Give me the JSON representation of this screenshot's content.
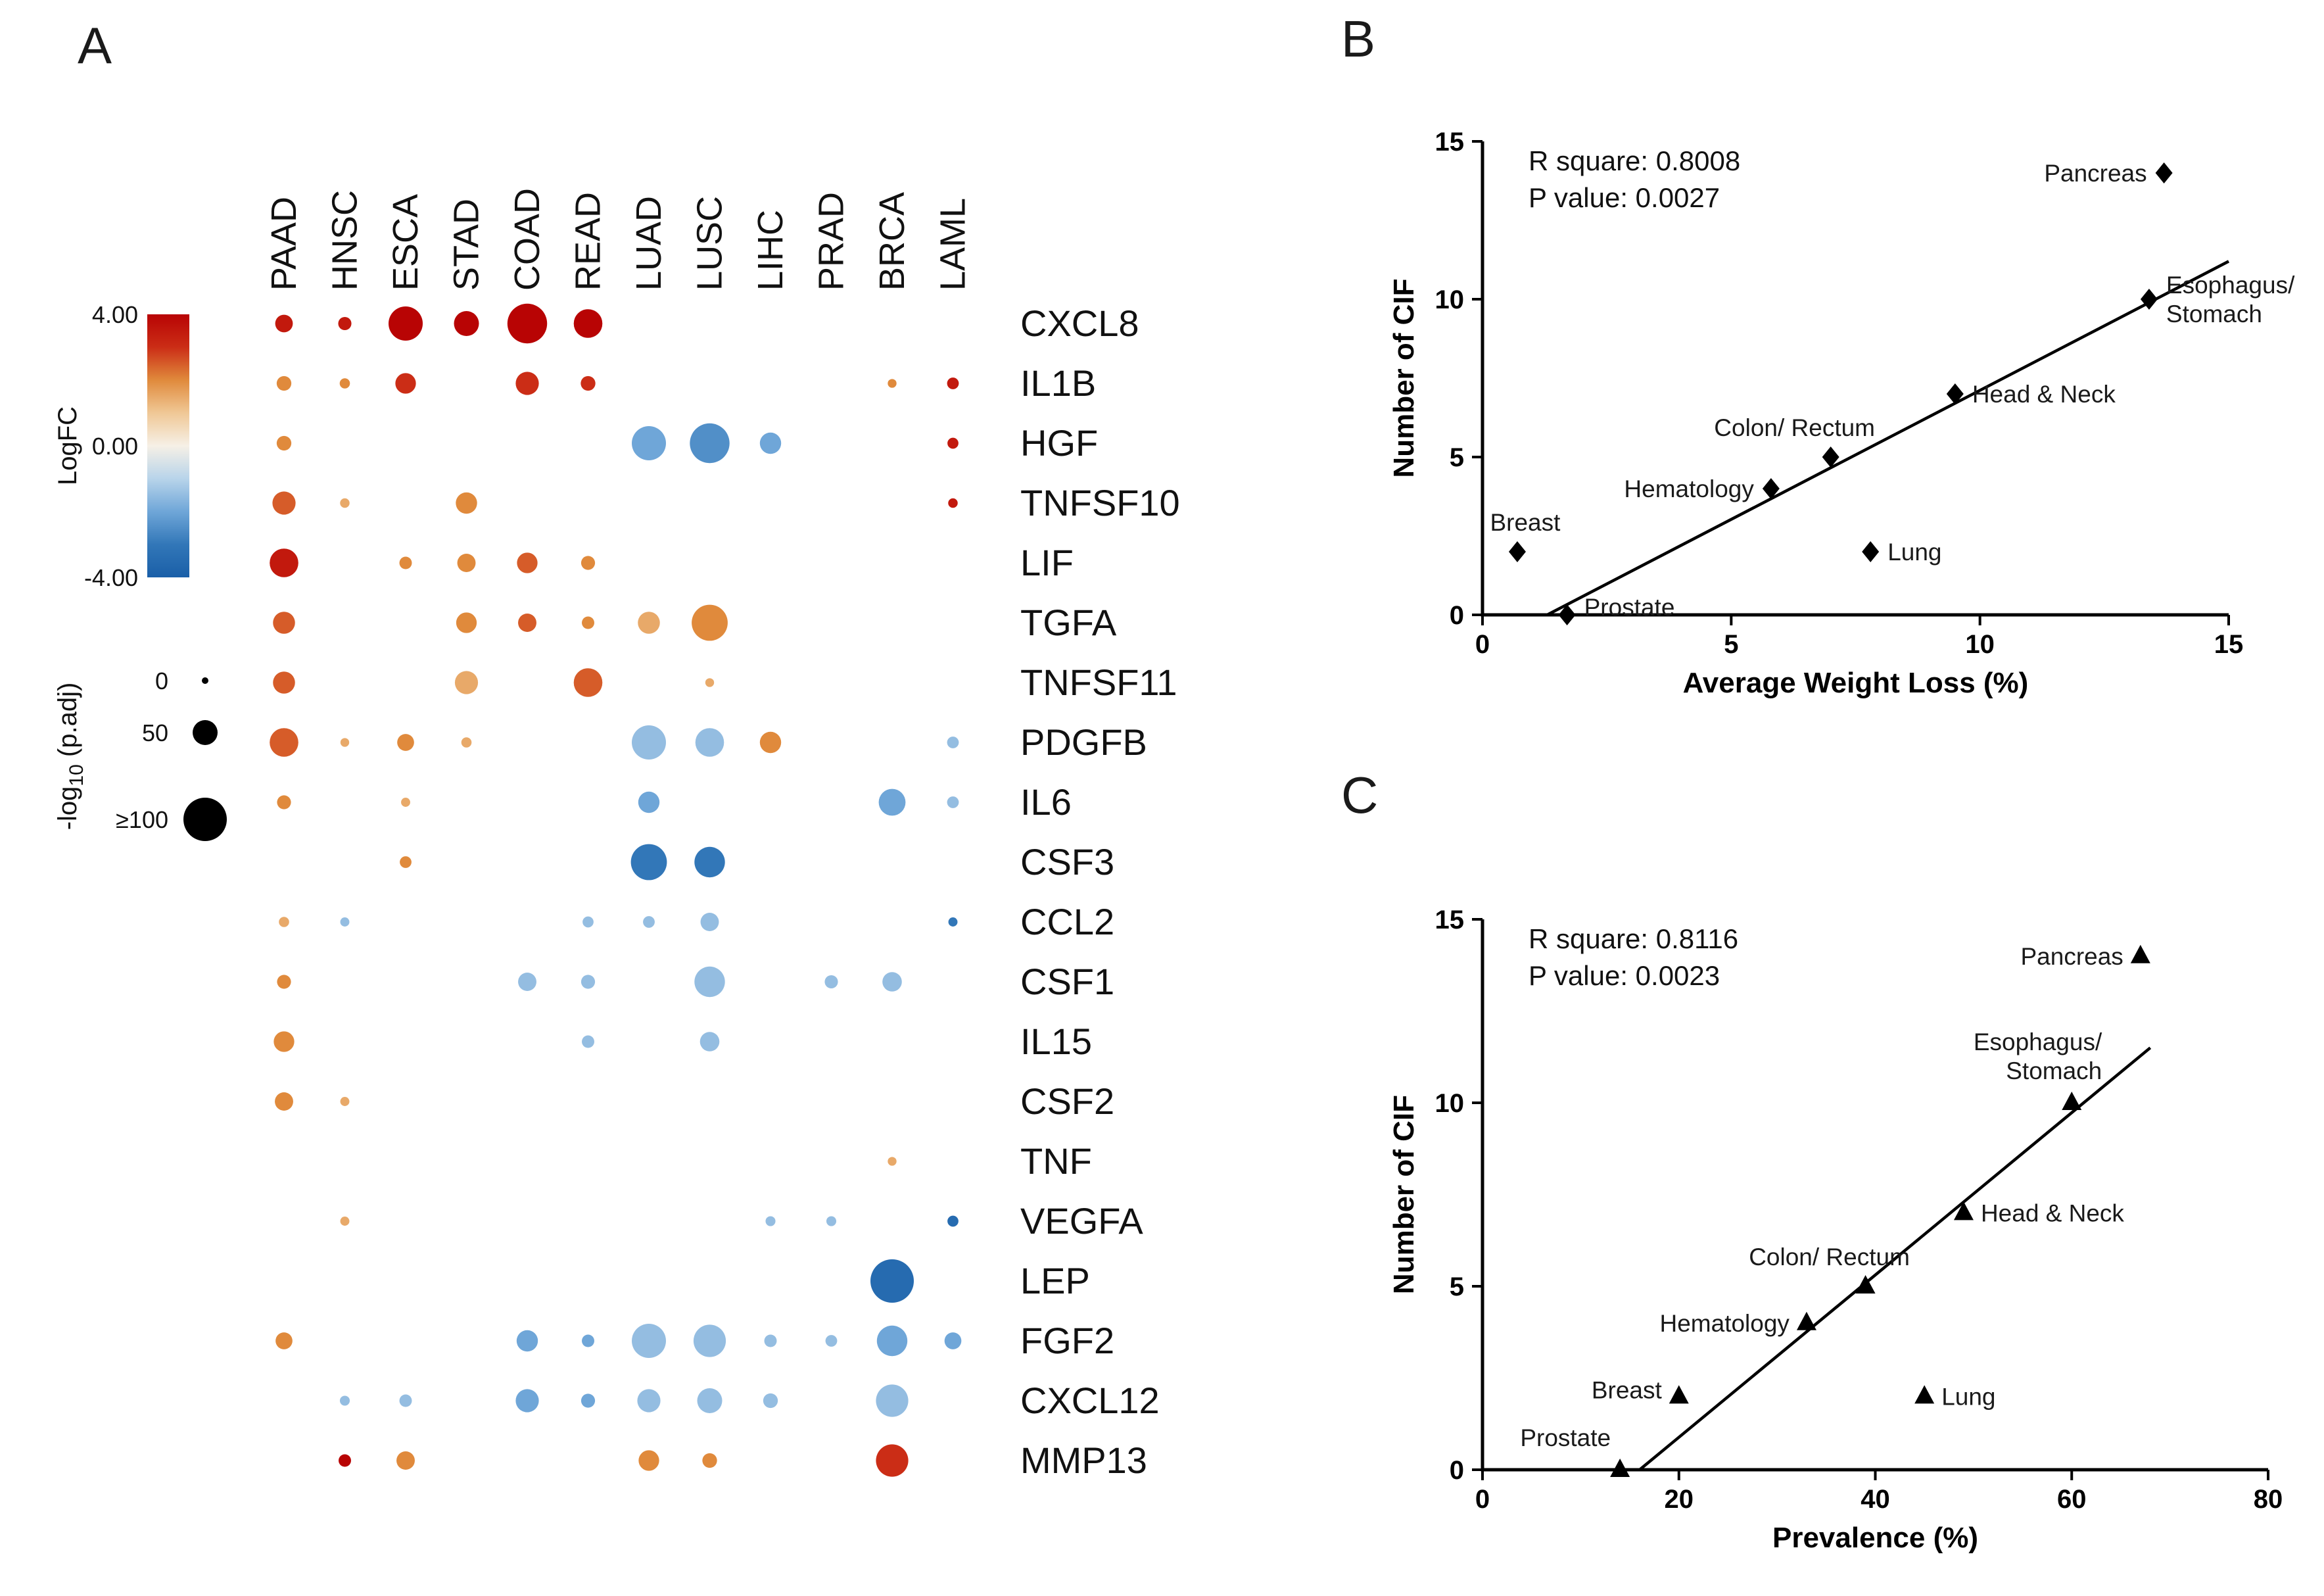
{
  "panels": {
    "a": {
      "label": "A"
    },
    "b": {
      "label": "B"
    },
    "c": {
      "label": "C"
    }
  },
  "chart_data": [
    {
      "id": "panel_a",
      "type": "heatmap",
      "subtype": "bubble-dot-plot",
      "columns": [
        "PAAD",
        "HNSC",
        "ESCA",
        "STAD",
        "COAD",
        "READ",
        "LUAD",
        "LUSC",
        "LIHC",
        "PRAD",
        "BRCA",
        "LAML"
      ],
      "rows": [
        "CXCL8",
        "IL1B",
        "HGF",
        "TNFSF10",
        "LIF",
        "TGFA",
        "TNFSF11",
        "PDGFB",
        "IL6",
        "CSF3",
        "CCL2",
        "CSF1",
        "IL15",
        "CSF2",
        "TNF",
        "VEGFA",
        "LEP",
        "FGF2",
        "CXCL12",
        "MMP13"
      ],
      "color_legend": {
        "title": "LogFC",
        "ticks": [
          {
            "label": "4.00",
            "value": 4
          },
          {
            "label": "0.00",
            "value": 0
          },
          {
            "label": "-4.00",
            "value": -4
          }
        ],
        "gradient": [
          {
            "value": 4,
            "color": "#b80404"
          },
          {
            "value": 3,
            "color": "#cb2d16"
          },
          {
            "value": 2,
            "color": "#e08a3c"
          },
          {
            "value": 1,
            "color": "#f0c896"
          },
          {
            "value": 0,
            "color": "#f6f0e6"
          },
          {
            "value": -1,
            "color": "#b8d4ea"
          },
          {
            "value": -2,
            "color": "#6fa6d8"
          },
          {
            "value": -3,
            "color": "#3277b8"
          },
          {
            "value": -4,
            "color": "#1a5fa8"
          }
        ]
      },
      "size_legend": {
        "title_prefix": "-log",
        "title_sub": "10",
        "title_suffix": " (p.adj)",
        "entries": [
          {
            "label": "0",
            "value": 0
          },
          {
            "label": "50",
            "value": 50
          },
          {
            "label": "≥100",
            "value": 100
          }
        ]
      },
      "point_format": [
        "gene",
        "cancer",
        "logFC",
        "neg_log10_padj"
      ],
      "points": [
        [
          "CXCL8",
          "PAAD",
          3.5,
          30
        ],
        [
          "CXCL8",
          "HNSC",
          3.5,
          18
        ],
        [
          "CXCL8",
          "ESCA",
          4,
          75
        ],
        [
          "CXCL8",
          "STAD",
          4,
          50
        ],
        [
          "CXCL8",
          "COAD",
          4,
          90
        ],
        [
          "CXCL8",
          "READ",
          4,
          60
        ],
        [
          "IL1B",
          "PAAD",
          2,
          22
        ],
        [
          "IL1B",
          "HNSC",
          2,
          10
        ],
        [
          "IL1B",
          "ESCA",
          3,
          38
        ],
        [
          "IL1B",
          "COAD",
          3,
          45
        ],
        [
          "IL1B",
          "READ",
          3,
          22
        ],
        [
          "IL1B",
          "BRCA",
          2,
          6
        ],
        [
          "IL1B",
          "LAML",
          3.5,
          14
        ],
        [
          "HGF",
          "PAAD",
          2,
          22
        ],
        [
          "HGF",
          "LUAD",
          -2,
          75
        ],
        [
          "HGF",
          "LUSC",
          -2.5,
          90
        ],
        [
          "HGF",
          "LIHC",
          -2,
          40
        ],
        [
          "HGF",
          "LAML",
          3.5,
          12
        ],
        [
          "TNFSF10",
          "PAAD",
          2.5,
          45
        ],
        [
          "TNFSF10",
          "HNSC",
          1.5,
          8
        ],
        [
          "TNFSF10",
          "STAD",
          2,
          40
        ],
        [
          "TNFSF10",
          "LAML",
          3.5,
          8
        ],
        [
          "LIF",
          "PAAD",
          3.5,
          60
        ],
        [
          "LIF",
          "ESCA",
          2,
          16
        ],
        [
          "LIF",
          "STAD",
          2,
          32
        ],
        [
          "LIF",
          "COAD",
          2.5,
          38
        ],
        [
          "LIF",
          "READ",
          2,
          20
        ],
        [
          "TGFA",
          "PAAD",
          2.5,
          42
        ],
        [
          "TGFA",
          "STAD",
          2,
          38
        ],
        [
          "TGFA",
          "COAD",
          2.5,
          32
        ],
        [
          "TGFA",
          "READ",
          2,
          16
        ],
        [
          "TGFA",
          "LUAD",
          1.5,
          42
        ],
        [
          "TGFA",
          "LUSC",
          2,
          80
        ],
        [
          "TNFSF11",
          "PAAD",
          2.5,
          42
        ],
        [
          "TNFSF11",
          "STAD",
          1.5,
          45
        ],
        [
          "TNFSF11",
          "READ",
          2.5,
          60
        ],
        [
          "TNFSF11",
          "LUSC",
          1.5,
          6
        ],
        [
          "PDGFB",
          "PAAD",
          2.5,
          60
        ],
        [
          "PDGFB",
          "HNSC",
          1.5,
          6
        ],
        [
          "PDGFB",
          "ESCA",
          2,
          28
        ],
        [
          "PDGFB",
          "STAD",
          1.5,
          10
        ],
        [
          "PDGFB",
          "LUAD",
          -1.5,
          75
        ],
        [
          "PDGFB",
          "LUSC",
          -1.5,
          60
        ],
        [
          "PDGFB",
          "LIHC",
          2,
          40
        ],
        [
          "PDGFB",
          "LAML",
          -1.5,
          14
        ],
        [
          "IL6",
          "PAAD",
          2,
          20
        ],
        [
          "IL6",
          "ESCA",
          1.5,
          7
        ],
        [
          "IL6",
          "LUAD",
          -2,
          40
        ],
        [
          "IL6",
          "BRCA",
          -2,
          55
        ],
        [
          "IL6",
          "LAML",
          -1.5,
          14
        ],
        [
          "CSF3",
          "ESCA",
          2,
          14
        ],
        [
          "CSF3",
          "LUAD",
          -3,
          80
        ],
        [
          "CSF3",
          "LUSC",
          -3,
          65
        ],
        [
          "CCL2",
          "PAAD",
          1.5,
          10
        ],
        [
          "CCL2",
          "HNSC",
          -1.5,
          7
        ],
        [
          "CCL2",
          "LUAD",
          -1.5,
          14
        ],
        [
          "CCL2",
          "READ",
          -1.5,
          12
        ],
        [
          "CCL2",
          "LUSC",
          -1.5,
          32
        ],
        [
          "CCL2",
          "LAML",
          -3,
          7
        ],
        [
          "CSF1",
          "PAAD",
          2,
          20
        ],
        [
          "CSF1",
          "COAD",
          -1.5,
          32
        ],
        [
          "CSF1",
          "READ",
          -1.5,
          20
        ],
        [
          "CSF1",
          "LUSC",
          -1.5,
          65
        ],
        [
          "CSF1",
          "PRAD",
          -1.5,
          18
        ],
        [
          "CSF1",
          "BRCA",
          -1.5,
          35
        ],
        [
          "IL15",
          "PAAD",
          2,
          38
        ],
        [
          "IL15",
          "READ",
          -1.5,
          16
        ],
        [
          "IL15",
          "LUSC",
          -1.5,
          35
        ],
        [
          "CSF2",
          "PAAD",
          2,
          32
        ],
        [
          "CSF2",
          "HNSC",
          1.5,
          7
        ],
        [
          "TNF",
          "BRCA",
          1.5,
          6
        ],
        [
          "VEGFA",
          "HNSC",
          1.5,
          7
        ],
        [
          "VEGFA",
          "LIHC",
          -1.5,
          9
        ],
        [
          "VEGFA",
          "PRAD",
          -1.5,
          9
        ],
        [
          "VEGFA",
          "LAML",
          -3.5,
          12
        ],
        [
          "LEP",
          "BRCA",
          -3.5,
          100
        ],
        [
          "FGF2",
          "PAAD",
          2,
          28
        ],
        [
          "FGF2",
          "COAD",
          -2,
          40
        ],
        [
          "FGF2",
          "READ",
          -2,
          16
        ],
        [
          "FGF2",
          "LUAD",
          -1.5,
          75
        ],
        [
          "FGF2",
          "LUSC",
          -1.5,
          70
        ],
        [
          "FGF2",
          "LIHC",
          -1.5,
          16
        ],
        [
          "FGF2",
          "PRAD",
          -1.5,
          14
        ],
        [
          "FGF2",
          "BRCA",
          -2,
          65
        ],
        [
          "FGF2",
          "LAML",
          -2,
          28
        ],
        [
          "CXCL12",
          "HNSC",
          -1.5,
          9
        ],
        [
          "CXCL12",
          "ESCA",
          -1.5,
          16
        ],
        [
          "CXCL12",
          "COAD",
          -2,
          45
        ],
        [
          "CXCL12",
          "READ",
          -2,
          20
        ],
        [
          "CXCL12",
          "LUAD",
          -1.5,
          45
        ],
        [
          "CXCL12",
          "LUSC",
          -1.5,
          50
        ],
        [
          "CXCL12",
          "LIHC",
          -1.5,
          22
        ],
        [
          "CXCL12",
          "BRCA",
          -1.5,
          70
        ],
        [
          "MMP13",
          "HNSC",
          4,
          16
        ],
        [
          "MMP13",
          "ESCA",
          2,
          32
        ],
        [
          "MMP13",
          "LUAD",
          2,
          38
        ],
        [
          "MMP13",
          "LUSC",
          2,
          22
        ],
        [
          "MMP13",
          "BRCA",
          3,
          70
        ]
      ]
    },
    {
      "id": "panel_b",
      "type": "scatter",
      "marker": "diamond",
      "annotation": [
        "R square: 0.8008",
        "P value: 0.0027"
      ],
      "xlabel": "Average Weight Loss (%)",
      "ylabel": "Number of CIF",
      "xlim": [
        0,
        15
      ],
      "ylim": [
        0,
        15
      ],
      "xticks": [
        0,
        5,
        10,
        15
      ],
      "yticks": [
        0,
        5,
        10,
        15
      ],
      "regression": {
        "x1": 1.3,
        "y1": 0,
        "x2": 15,
        "y2": 11.2
      },
      "points": [
        {
          "name": "Breast",
          "x": 0.7,
          "y": 2,
          "lines": [
            "Breast"
          ],
          "side": "above",
          "dx": 12
        },
        {
          "name": "Prostate",
          "x": 1.7,
          "y": 0,
          "lines": [
            "Prostate"
          ],
          "side": "right",
          "dy": -12
        },
        {
          "name": "Hematology",
          "x": 5.8,
          "y": 4,
          "lines": [
            "Hematology"
          ],
          "side": "left"
        },
        {
          "name": "Colon/ Rectum",
          "x": 7,
          "y": 5,
          "lines": [
            "Colon/ Rectum"
          ],
          "side": "above",
          "dx": -55
        },
        {
          "name": "Lung",
          "x": 7.8,
          "y": 2,
          "lines": [
            "Lung"
          ],
          "side": "right"
        },
        {
          "name": "Head & Neck",
          "x": 9.5,
          "y": 7,
          "lines": [
            "Head & Neck"
          ],
          "side": "right"
        },
        {
          "name": "Esophagus/ Stomach",
          "x": 13.4,
          "y": 10,
          "lines": [
            "Esophagus/",
            "Stomach"
          ],
          "side": "right"
        },
        {
          "name": "Pancreas",
          "x": 13.7,
          "y": 14,
          "lines": [
            "Pancreas"
          ],
          "side": "left"
        }
      ]
    },
    {
      "id": "panel_c",
      "type": "scatter",
      "marker": "triangle",
      "annotation": [
        "R square: 0.8116",
        "P value: 0.0023"
      ],
      "xlabel": "Prevalence (%)",
      "ylabel": "Number of CIF",
      "xlim": [
        0,
        80
      ],
      "ylim": [
        0,
        15
      ],
      "xticks": [
        0,
        20,
        40,
        60,
        80
      ],
      "yticks": [
        0,
        5,
        10,
        15
      ],
      "regression": {
        "x1": 16,
        "y1": 0,
        "x2": 68,
        "y2": 11.5
      },
      "points": [
        {
          "name": "Prostate",
          "x": 14,
          "y": 0,
          "lines": [
            "Prostate"
          ],
          "side": "above-left"
        },
        {
          "name": "Breast",
          "x": 20,
          "y": 2,
          "lines": [
            "Breast"
          ],
          "side": "left",
          "dy": -10
        },
        {
          "name": "Hematology",
          "x": 33,
          "y": 4,
          "lines": [
            "Hematology"
          ],
          "side": "left"
        },
        {
          "name": "Colon/ Rectum",
          "x": 39,
          "y": 5,
          "lines": [
            "Colon/ Rectum"
          ],
          "side": "above",
          "dx": -55
        },
        {
          "name": "Lung",
          "x": 45,
          "y": 2,
          "lines": [
            "Lung"
          ],
          "side": "right"
        },
        {
          "name": "Head & Neck",
          "x": 49,
          "y": 7,
          "lines": [
            "Head & Neck"
          ],
          "side": "right"
        },
        {
          "name": "Esophagus/ Stomach",
          "x": 60,
          "y": 10,
          "lines": [
            "Esophagus/",
            "Stomach"
          ],
          "side": "above-left",
          "dx": 60
        },
        {
          "name": "Pancreas",
          "x": 67,
          "y": 14,
          "lines": [
            "Pancreas"
          ],
          "side": "left"
        }
      ]
    }
  ]
}
